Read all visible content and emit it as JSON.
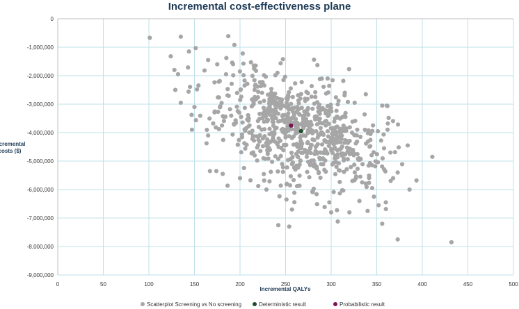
{
  "chart_data": {
    "type": "scatter",
    "title": "Incremental cost-effectiveness plane",
    "xlabel": "Incremental QALYs",
    "ylabel_lines": [
      "Incremental",
      "costs ($)"
    ],
    "xlim": [
      0,
      500
    ],
    "ylim": [
      -9000000,
      0
    ],
    "x_ticks": [
      0,
      50,
      100,
      150,
      200,
      250,
      300,
      350,
      400,
      450,
      500
    ],
    "x_tick_labels": [
      "0",
      "50",
      "100",
      "150",
      "200",
      "250",
      "300",
      "350",
      "400",
      "450",
      "500"
    ],
    "y_ticks": [
      0,
      -1000000,
      -2000000,
      -3000000,
      -4000000,
      -5000000,
      -6000000,
      -7000000,
      -8000000,
      -9000000
    ],
    "y_tick_labels": [
      "0",
      "-1,000,000",
      "-2,000,000",
      "-3,000,000",
      "-4,000,000",
      "-5,000,000",
      "-6,000,000",
      "-7,000,000",
      "-8,000,000",
      "-9,000,000"
    ],
    "grid": true,
    "legend_position": "bottom",
    "series": [
      {
        "name": "Scatterplot Screening vs No screening",
        "color": "#a6a6a6",
        "generated_cloud": {
          "count": 760,
          "mean_x": 262,
          "mean_y": -3900000,
          "sd_x": 45,
          "sd_y": 1000000,
          "correlation": -0.45,
          "seed": 20240611
        },
        "points": [
          [
            101,
            -670000
          ],
          [
            135,
            -630000
          ],
          [
            144,
            -1150000
          ],
          [
            124,
            -1320000
          ],
          [
            128,
            -1800000
          ],
          [
            129,
            -2500000
          ],
          [
            135,
            -2950000
          ],
          [
            132,
            -1950000
          ],
          [
            165,
            -1450000
          ],
          [
            175,
            -1600000
          ],
          [
            185,
            -1380000
          ],
          [
            203,
            -1220000
          ],
          [
            150,
            -3100000
          ],
          [
            165,
            -4100000
          ],
          [
            167,
            -5350000
          ],
          [
            174,
            -5350000
          ],
          [
            181,
            -5450000
          ],
          [
            200,
            -5600000
          ],
          [
            229,
            -6000000
          ],
          [
            242,
            -7250000
          ],
          [
            254,
            -7300000
          ],
          [
            251,
            -6350000
          ],
          [
            257,
            -6700000
          ],
          [
            298,
            -6450000
          ],
          [
            300,
            -6800000
          ],
          [
            320,
            -6800000
          ],
          [
            331,
            -6400000
          ],
          [
            340,
            -6750000
          ],
          [
            347,
            -6250000
          ],
          [
            352,
            -6550000
          ],
          [
            356,
            -7200000
          ],
          [
            360,
            -6450000
          ],
          [
            373,
            -7750000
          ],
          [
            432,
            -7850000
          ],
          [
            386,
            -6000000
          ],
          [
            411,
            -4850000
          ],
          [
            384,
            -4450000
          ],
          [
            358,
            -4550000
          ],
          [
            365,
            -4700000
          ],
          [
            356,
            -3050000
          ],
          [
            361,
            -3050000
          ],
          [
            338,
            -2650000
          ],
          [
            315,
            -2600000
          ],
          [
            368,
            -5600000
          ],
          [
            373,
            -5400000
          ],
          [
            345,
            -5950000
          ],
          [
            332,
            -5550000
          ]
        ]
      },
      {
        "name": "Deterministic result",
        "color": "#1e4d2b",
        "points": [
          [
            267,
            -3950000
          ]
        ]
      },
      {
        "name": "Probabilistic result",
        "color": "#7a1452",
        "points": [
          [
            256,
            -3750000
          ]
        ]
      }
    ]
  }
}
